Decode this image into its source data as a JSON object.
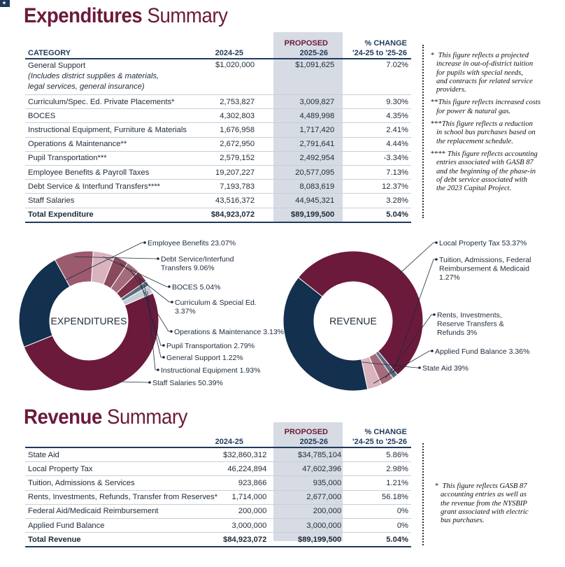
{
  "expenditures": {
    "title_strong": "Expenditures",
    "title_light": "Summary",
    "headers": {
      "category": "CATEGORY",
      "year1": "2024-25",
      "proposed_line1": "PROPOSED",
      "proposed_line2": "2025-26",
      "change_line1": "% CHANGE",
      "change_line2": "'24-25 to '25-26"
    },
    "rows": [
      {
        "label": "General Support",
        "sub1": "(Includes district supplies & materials,",
        "sub2": "legal services, general insurance)",
        "y1": "$1,020,000",
        "y2": "$1,091,625",
        "pct": "7.02%"
      },
      {
        "label": "Curriculum/Spec. Ed. Private Placements*",
        "y1": "2,753,827",
        "y2": "3,009,827",
        "pct": "9.30%"
      },
      {
        "label": "BOCES",
        "y1": "4,302,803",
        "y2": "4,489,998",
        "pct": "4.35%"
      },
      {
        "label": "Instructional Equipment, Furniture & Materials",
        "y1": "1,676,958",
        "y2": "1,717,420",
        "pct": "2.41%"
      },
      {
        "label": "Operations & Maintenance**",
        "y1": "2,672,950",
        "y2": "2,791,641",
        "pct": "4.44%"
      },
      {
        "label": "Pupil Transportation***",
        "y1": "2,579,152",
        "y2": "2,492,954",
        "pct": "-3.34%"
      },
      {
        "label": "Employee Benefits & Payroll Taxes",
        "y1": "19,207,227",
        "y2": "20,577,095",
        "pct": "7.13%"
      },
      {
        "label": "Debt Service & Interfund Transfers****",
        "y1": "7,193,783",
        "y2": "8,083,619",
        "pct": "12.37%"
      },
      {
        "label": "Staff Salaries",
        "y1": "43,516,372",
        "y2": "44,945,321",
        "pct": "3.28%"
      }
    ],
    "total": {
      "label": "Total Expenditure",
      "y1": "$84,923,072",
      "y2": "$89,199,500",
      "pct": "5.04%"
    },
    "notes": [
      {
        "star": "*",
        "lines": [
          "This figure reflects a projected",
          "increase in out-of-district tuition",
          "for pupils with special needs,",
          "and contracts for related service",
          "providers."
        ]
      },
      {
        "star": "**",
        "lines": [
          "This figure reflects increased costs",
          "for power & natural gas."
        ]
      },
      {
        "star": "***",
        "lines": [
          "This figure reflects a reduction",
          "in school bus purchases based on",
          "the replacement schedule."
        ]
      },
      {
        "star": "****",
        "lines": [
          "This figure reflects accounting",
          "entries associated with GASB 87",
          "and the beginning of the phase-in",
          "of debt service associated with",
          "the 2023 Capital Project."
        ]
      }
    ]
  },
  "chart_data": [
    {
      "type": "pie",
      "title": "EXPENDITURES",
      "slices": [
        {
          "name": "Staff Salaries",
          "label": "Staff Salaries 50.39%",
          "value": 50.39,
          "color": "#6b1a3b"
        },
        {
          "name": "Employee Benefits",
          "label": "Employee Benefits 23.07%",
          "value": 23.07,
          "color": "#14304f"
        },
        {
          "name": "Debt Service/Interfund Transfers",
          "label_lines": [
            "Debt Service/Interfund",
            "Transfers 9.06%"
          ],
          "value": 9.06,
          "color": "#9b5a6e"
        },
        {
          "name": "BOCES",
          "label": "BOCES 5.04%",
          "value": 5.04,
          "color": "#d9b3bd"
        },
        {
          "name": "Curriculum & Special Ed.",
          "label_lines": [
            "Curriculum & Special Ed.",
            "3.37%"
          ],
          "value": 3.37,
          "color": "#8a4a5e"
        },
        {
          "name": "Operations & Maintenance",
          "label": "Operations & Maintenance 3.13%",
          "value": 3.13,
          "color": "#a56b7c"
        },
        {
          "name": "Pupil Transportation",
          "label": "Pupil Transportation 2.79%",
          "value": 2.79,
          "color": "#7a2f49"
        },
        {
          "name": "General Support",
          "label": "General Support 1.22%",
          "value": 1.22,
          "color": "#5c6b80"
        },
        {
          "name": "Instructional Equipment",
          "label": "Instructional Equipment 1.93%",
          "value": 1.93,
          "color": "#c6ccd6"
        }
      ]
    },
    {
      "type": "pie",
      "title": "REVENUE",
      "slices": [
        {
          "name": "Local Property Tax",
          "label": "Local Property Tax 53.37%",
          "value": 53.37,
          "color": "#6b1a3b"
        },
        {
          "name": "Tuition, Admissions, Federal Reimbursement & Medicaid",
          "label_lines": [
            "Tuition, Admissions, Federal",
            "Reimbursement & Medicaid",
            "1.27%"
          ],
          "value": 1.27,
          "color": "#5c6b80"
        },
        {
          "name": "Rents, Investments, Reserve Transfers & Refunds",
          "label_lines": [
            "Rents, Investments,",
            "Reserve Transfers &",
            "Refunds 3%"
          ],
          "value": 3.0,
          "color": "#a56b7c"
        },
        {
          "name": "Applied Fund Balance",
          "label": "Applied Fund Balance 3.36%",
          "value": 3.36,
          "color": "#d9b3bd"
        },
        {
          "name": "State Aid",
          "label": "State Aid 39%",
          "value": 39.0,
          "color": "#14304f"
        }
      ]
    }
  ],
  "revenue": {
    "title_strong": "Revenue",
    "title_light": "Summary",
    "headers": {
      "year1": "2024-25",
      "proposed_line1": "PROPOSED",
      "proposed_line2": "2025-26",
      "change_line1": "% CHANGE",
      "change_line2": "'24-25 to '25-26"
    },
    "rows": [
      {
        "label": "State Aid",
        "y1": "$32,860,312",
        "y2": "$34,785,104",
        "pct": "5.86%"
      },
      {
        "label": "Local Property Tax",
        "y1": "46,224,894",
        "y2": "47,602,396",
        "pct": "2.98%"
      },
      {
        "label": "Tuition, Admissions & Services",
        "y1": "923,866",
        "y2": "935,000",
        "pct": "1.21%"
      },
      {
        "label": "Rents, Investments, Refunds, Transfer from Reserves*",
        "y1": "1,714,000",
        "y2": "2,677,000",
        "pct": "56.18%"
      },
      {
        "label": "Federal Aid/Medicaid Reimbursement",
        "y1": "200,000",
        "y2": "200,000",
        "pct": "0%"
      },
      {
        "label": "Applied Fund Balance",
        "y1": "3,000,000",
        "y2": "3,000,000",
        "pct": "0%"
      }
    ],
    "total": {
      "label": "Total Revenue",
      "y1": "$84,923,072",
      "y2": "$89,199,500",
      "pct": "5.04%"
    },
    "notes": [
      {
        "star": "*",
        "lines": [
          "This figure reflects GASB 87",
          "accounting entries as well as",
          "the revenue from the NYSBIP",
          "grant associated with electric",
          "bus purchases."
        ]
      }
    ]
  }
}
